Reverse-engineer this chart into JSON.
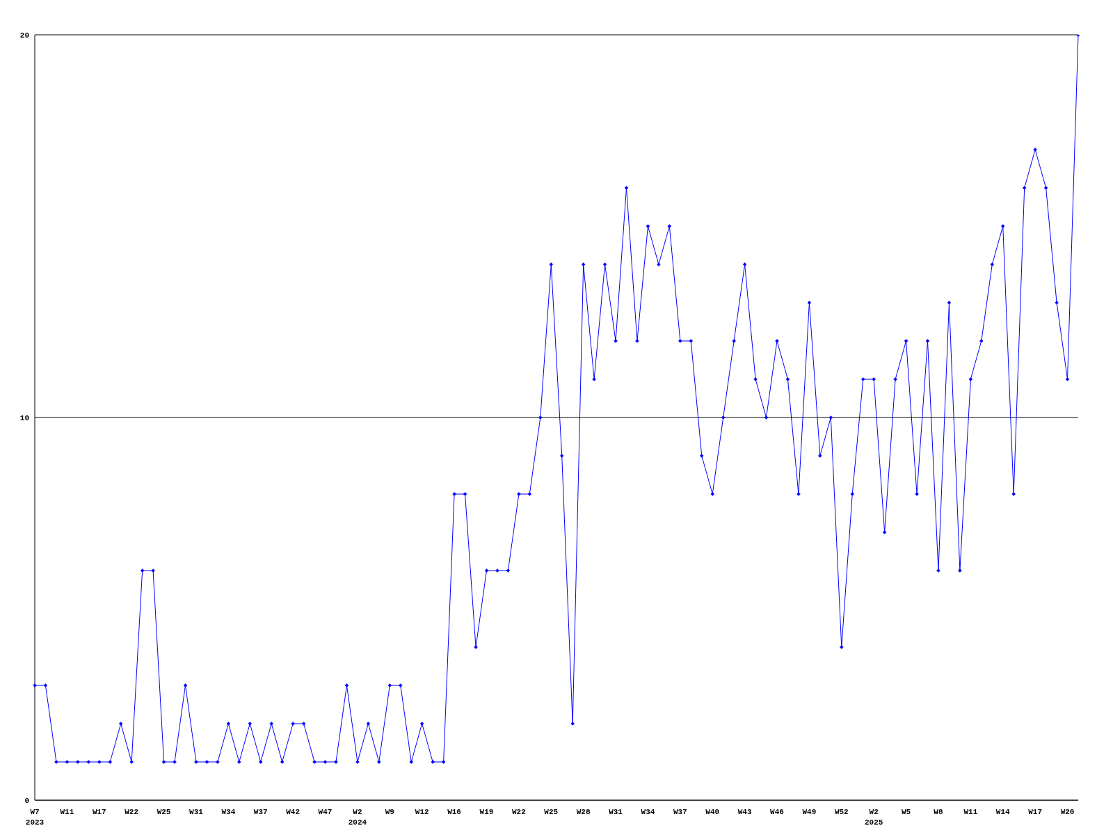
{
  "chart_data": {
    "type": "line",
    "categories": [
      "W7\n2023",
      null,
      null,
      "W11",
      null,
      null,
      "W17",
      null,
      null,
      "W22",
      null,
      null,
      "W25",
      null,
      null,
      "W31",
      null,
      null,
      "W34",
      null,
      null,
      "W37",
      null,
      null,
      "W42",
      null,
      null,
      "W47",
      null,
      null,
      "W2\n2024",
      null,
      null,
      "W9",
      null,
      null,
      "W12",
      null,
      null,
      "W16",
      null,
      null,
      "W19",
      null,
      null,
      "W22",
      null,
      null,
      "W25",
      null,
      null,
      "W28",
      null,
      null,
      "W31",
      null,
      null,
      "W34",
      null,
      null,
      "W37",
      null,
      null,
      "W40",
      null,
      null,
      "W43",
      null,
      null,
      "W46",
      null,
      null,
      "W49",
      null,
      null,
      "W52",
      null,
      null,
      "W2\n2025",
      null,
      null,
      "W5",
      null,
      null,
      "W8",
      null,
      null,
      "W11",
      null,
      null,
      "W14",
      null,
      null,
      "W17",
      null,
      null,
      "W20",
      null
    ],
    "series": [
      {
        "color": "#0000ff",
        "values": [
          3,
          3,
          1,
          1,
          1,
          1,
          1,
          1,
          2,
          1,
          6,
          6,
          1,
          1,
          3,
          1,
          1,
          1,
          2,
          1,
          2,
          1,
          2,
          1,
          2,
          2,
          1,
          1,
          1,
          3,
          1,
          2,
          1,
          3,
          3,
          1,
          2,
          1,
          1,
          8,
          8,
          4,
          6,
          6,
          6,
          8,
          8,
          10,
          14,
          9,
          2,
          14,
          11,
          14,
          12,
          16,
          12,
          15,
          14,
          15,
          12,
          12,
          9,
          8,
          10,
          12,
          14,
          11,
          10,
          12,
          11,
          8,
          13,
          9,
          10,
          4,
          8,
          11,
          11,
          7,
          11,
          12,
          8,
          12,
          6,
          13,
          6,
          11,
          12,
          14,
          15,
          8,
          16,
          17,
          16,
          13,
          11,
          20
        ]
      }
    ],
    "ylim": [
      0,
      20
    ],
    "yticks": [
      0,
      10,
      20
    ],
    "grid": "y",
    "marker": "diamond",
    "line_style": "solid"
  }
}
